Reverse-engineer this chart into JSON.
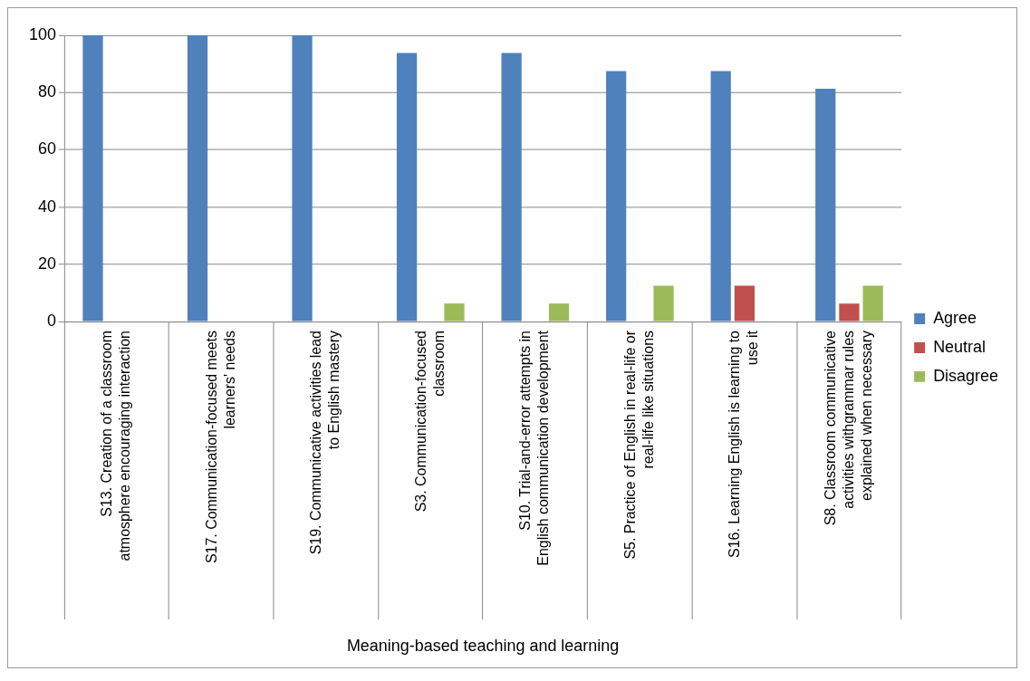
{
  "chart_data": {
    "type": "bar",
    "xlabel": "Meaning-based teaching and learning",
    "categories": [
      "S13. Creation of a classroom atmosphere encouraging interaction",
      "S17. Communication-focused meets learners' needs",
      "S19. Communicative activities lead to English mastery",
      "S3. Communication-focused classroom",
      "S10. Trial-and-error attempts in English communication development",
      "S5. Practice of English in real-life or real-life like situations",
      "S16. Learning English is learning to use it",
      "S8. Classroom communicative activities withgrammar rules explained when necessary"
    ],
    "series": [
      {
        "name": "Agree",
        "color": "#4f81bd",
        "values": [
          100,
          100,
          100,
          93.8,
          93.8,
          87.5,
          87.5,
          81.3
        ]
      },
      {
        "name": "Neutral",
        "color": "#c0504d",
        "values": [
          0,
          0,
          0,
          0,
          0,
          0,
          12.5,
          6.3
        ]
      },
      {
        "name": "Disagree",
        "color": "#9bbb59",
        "values": [
          0,
          0,
          0,
          6.3,
          6.3,
          12.5,
          0,
          12.5
        ]
      }
    ],
    "ylim": [
      0,
      100
    ],
    "yticks": [
      0,
      20,
      40,
      60,
      80,
      100
    ],
    "grid": "y",
    "legend": "right"
  }
}
